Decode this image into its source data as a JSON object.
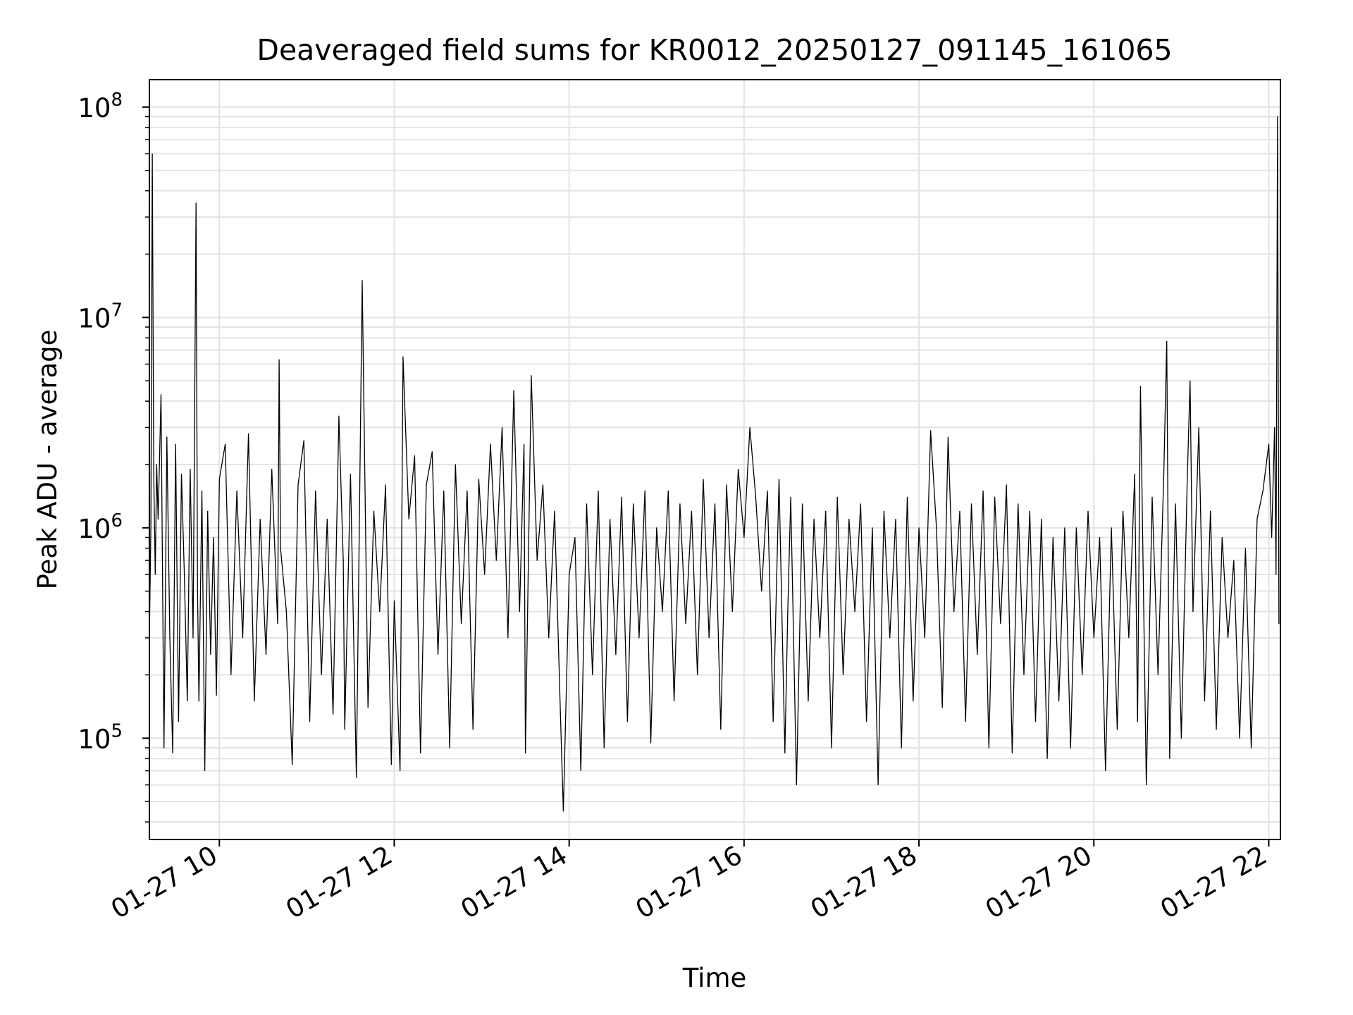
{
  "chart_data": {
    "type": "line",
    "title": "Deaveraged field sums for KR0012_20250127_091145_161065",
    "xlabel": "Time",
    "ylabel": "Peak ADU - average",
    "x_scale": "time",
    "y_scale": "log",
    "xlim": [
      "01-27 09:12",
      "01-27 22:08"
    ],
    "ylim": [
      33000,
      135000000
    ],
    "x_ticks": [
      {
        "value": "01-27 10:00",
        "label": "01-27 10"
      },
      {
        "value": "01-27 12:00",
        "label": "01-27 12"
      },
      {
        "value": "01-27 14:00",
        "label": "01-27 14"
      },
      {
        "value": "01-27 16:00",
        "label": "01-27 16"
      },
      {
        "value": "01-27 18:00",
        "label": "01-27 18"
      },
      {
        "value": "01-27 20:00",
        "label": "01-27 20"
      },
      {
        "value": "01-27 22:00",
        "label": "01-27 22"
      }
    ],
    "y_ticks": [
      {
        "value": 100000,
        "base": "10",
        "exp": "5"
      },
      {
        "value": 1000000,
        "base": "10",
        "exp": "6"
      },
      {
        "value": 10000000,
        "base": "10",
        "exp": "7"
      },
      {
        "value": 100000000,
        "base": "10",
        "exp": "8"
      }
    ],
    "grid": true,
    "line_color": "#000000",
    "series": [
      {
        "x": [
          "01-27 09:12",
          "01-27 09:13",
          "01-27 09:14",
          "01-27 09:15",
          "01-27 09:16",
          "01-27 09:17",
          "01-27 09:18",
          "01-27 09:20",
          "01-27 09:22",
          "01-27 09:24",
          "01-27 09:26",
          "01-27 09:28",
          "01-27 09:30",
          "01-27 09:32",
          "01-27 09:34",
          "01-27 09:36",
          "01-27 09:38",
          "01-27 09:40",
          "01-27 09:42",
          "01-27 09:44",
          "01-27 09:45",
          "01-27 09:46",
          "01-27 09:48",
          "01-27 09:50",
          "01-27 09:52",
          "01-27 09:54",
          "01-27 09:56",
          "01-27 09:58",
          "01-27 10:00",
          "01-27 10:04",
          "01-27 10:08",
          "01-27 10:12",
          "01-27 10:16",
          "01-27 10:20",
          "01-27 10:24",
          "01-27 10:28",
          "01-27 10:32",
          "01-27 10:36",
          "01-27 10:40",
          "01-27 10:41",
          "01-27 10:42",
          "01-27 10:46",
          "01-27 10:50",
          "01-27 10:54",
          "01-27 10:58",
          "01-27 11:02",
          "01-27 11:06",
          "01-27 11:10",
          "01-27 11:14",
          "01-27 11:18",
          "01-27 11:22",
          "01-27 11:25",
          "01-27 11:26",
          "01-27 11:30",
          "01-27 11:34",
          "01-27 11:38",
          "01-27 11:42",
          "01-27 11:46",
          "01-27 11:50",
          "01-27 11:54",
          "01-27 11:58",
          "01-27 12:00",
          "01-27 12:04",
          "01-27 12:06",
          "01-27 12:10",
          "01-27 12:14",
          "01-27 12:18",
          "01-27 12:22",
          "01-27 12:26",
          "01-27 12:30",
          "01-27 12:34",
          "01-27 12:38",
          "01-27 12:42",
          "01-27 12:46",
          "01-27 12:50",
          "01-27 12:54",
          "01-27 12:58",
          "01-27 13:02",
          "01-27 13:06",
          "01-27 13:10",
          "01-27 13:14",
          "01-27 13:18",
          "01-27 13:22",
          "01-27 13:26",
          "01-27 13:29",
          "01-27 13:30",
          "01-27 13:34",
          "01-27 13:38",
          "01-27 13:42",
          "01-27 13:46",
          "01-27 13:50",
          "01-27 13:54",
          "01-27 13:56",
          "01-27 14:00",
          "01-27 14:04",
          "01-27 14:08",
          "01-27 14:12",
          "01-27 14:16",
          "01-27 14:20",
          "01-27 14:24",
          "01-27 14:28",
          "01-27 14:32",
          "01-27 14:36",
          "01-27 14:40",
          "01-27 14:44",
          "01-27 14:48",
          "01-27 14:52",
          "01-27 14:56",
          "01-27 15:00",
          "01-27 15:04",
          "01-27 15:08",
          "01-27 15:12",
          "01-27 15:16",
          "01-27 15:20",
          "01-27 15:24",
          "01-27 15:28",
          "01-27 15:32",
          "01-27 15:36",
          "01-27 15:40",
          "01-27 15:44",
          "01-27 15:48",
          "01-27 15:52",
          "01-27 15:56",
          "01-27 16:00",
          "01-27 16:04",
          "01-27 16:08",
          "01-27 16:12",
          "01-27 16:16",
          "01-27 16:20",
          "01-27 16:24",
          "01-27 16:28",
          "01-27 16:30",
          "01-27 16:32",
          "01-27 16:36",
          "01-27 16:40",
          "01-27 16:44",
          "01-27 16:48",
          "01-27 16:52",
          "01-27 16:56",
          "01-27 17:00",
          "01-27 17:04",
          "01-27 17:08",
          "01-27 17:12",
          "01-27 17:16",
          "01-27 17:20",
          "01-27 17:24",
          "01-27 17:28",
          "01-27 17:32",
          "01-27 17:36",
          "01-27 17:40",
          "01-27 17:44",
          "01-27 17:48",
          "01-27 17:52",
          "01-27 17:56",
          "01-27 18:00",
          "01-27 18:04",
          "01-27 18:08",
          "01-27 18:12",
          "01-27 18:16",
          "01-27 18:20",
          "01-27 18:24",
          "01-27 18:28",
          "01-27 18:32",
          "01-27 18:36",
          "01-27 18:40",
          "01-27 18:44",
          "01-27 18:48",
          "01-27 18:52",
          "01-27 18:56",
          "01-27 19:00",
          "01-27 19:04",
          "01-27 19:08",
          "01-27 19:12",
          "01-27 19:16",
          "01-27 19:20",
          "01-27 19:24",
          "01-27 19:28",
          "01-27 19:32",
          "01-27 19:36",
          "01-27 19:40",
          "01-27 19:44",
          "01-27 19:48",
          "01-27 19:52",
          "01-27 19:56",
          "01-27 20:00",
          "01-27 20:04",
          "01-27 20:08",
          "01-27 20:12",
          "01-27 20:16",
          "01-27 20:20",
          "01-27 20:24",
          "01-27 20:28",
          "01-27 20:30",
          "01-27 20:32",
          "01-27 20:36",
          "01-27 20:40",
          "01-27 20:44",
          "01-27 20:48",
          "01-27 20:50",
          "01-27 20:52",
          "01-27 20:56",
          "01-27 21:00",
          "01-27 21:04",
          "01-27 21:06",
          "01-27 21:08",
          "01-27 21:12",
          "01-27 21:16",
          "01-27 21:20",
          "01-27 21:24",
          "01-27 21:28",
          "01-27 21:32",
          "01-27 21:36",
          "01-27 21:40",
          "01-27 21:44",
          "01-27 21:48",
          "01-27 21:52",
          "01-27 21:56",
          "01-27 22:00",
          "01-27 22:02",
          "01-27 22:04",
          "01-27 22:05",
          "01-27 22:06",
          "01-27 22:07"
        ],
        "y": [
          300000,
          1000000,
          60000000,
          1800000,
          600000,
          2000000,
          1100000,
          4300000,
          90000,
          2700000,
          300000,
          85000,
          2500000,
          120000,
          1800000,
          600000,
          150000,
          1900000,
          300000,
          35000000,
          500000,
          150000,
          1500000,
          70000,
          1200000,
          250000,
          900000,
          160000,
          1700000,
          2500000,
          200000,
          1500000,
          300000,
          2800000,
          150000,
          1100000,
          250000,
          1900000,
          350000,
          6300000,
          800000,
          400000,
          75000,
          1600000,
          2600000,
          120000,
          1500000,
          200000,
          1100000,
          130000,
          3400000,
          700000,
          110000,
          1800000,
          65000,
          15000000,
          140000,
          1200000,
          400000,
          1600000,
          75000,
          450000,
          70000,
          6500000,
          1100000,
          2200000,
          85000,
          1600000,
          2300000,
          250000,
          1500000,
          90000,
          2000000,
          350000,
          1500000,
          110000,
          1700000,
          600000,
          2500000,
          700000,
          3000000,
          300000,
          4500000,
          400000,
          2500000,
          85000,
          5300000,
          700000,
          1600000,
          300000,
          1200000,
          130000,
          45000,
          600000,
          900000,
          70000,
          1300000,
          200000,
          1500000,
          90000,
          1100000,
          250000,
          1400000,
          120000,
          1300000,
          300000,
          1500000,
          95000,
          1000000,
          400000,
          1500000,
          150000,
          1300000,
          350000,
          1200000,
          200000,
          1700000,
          300000,
          1300000,
          110000,
          1600000,
          400000,
          1900000,
          900000,
          3000000,
          1400000,
          500000,
          1500000,
          120000,
          1700000,
          85000,
          400000,
          1400000,
          60000,
          1300000,
          150000,
          1100000,
          300000,
          1200000,
          90000,
          1400000,
          200000,
          1100000,
          400000,
          1300000,
          120000,
          1000000,
          60000,
          1200000,
          300000,
          1100000,
          90000,
          1400000,
          150000,
          1000000,
          300000,
          2900000,
          1000000,
          140000,
          2700000,
          400000,
          1200000,
          120000,
          1300000,
          250000,
          1500000,
          90000,
          1400000,
          350000,
          1600000,
          85000,
          1300000,
          200000,
          1200000,
          120000,
          1100000,
          80000,
          900000,
          150000,
          1000000,
          90000,
          1000000,
          200000,
          1200000,
          300000,
          900000,
          70000,
          1000000,
          110000,
          1200000,
          300000,
          1800000,
          120000,
          4700000,
          60000,
          1400000,
          200000,
          1800000,
          7700000,
          80000,
          1300000,
          100000,
          1600000,
          5000000,
          400000,
          3000000,
          150000,
          1200000,
          110000,
          900000,
          300000,
          700000,
          100000,
          800000,
          90000,
          1100000,
          1500000,
          2500000,
          900000,
          3000000,
          600000,
          90000000,
          350000
        ]
      }
    ]
  }
}
